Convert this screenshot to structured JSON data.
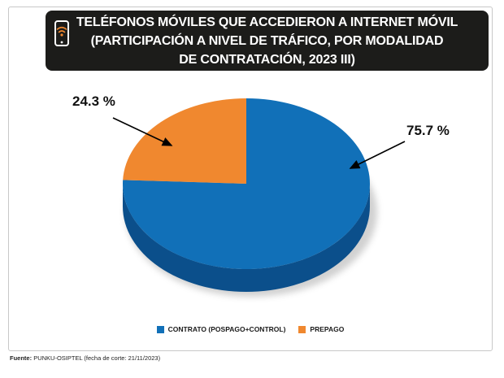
{
  "header": {
    "lines": [
      "TELÉFONOS MÓVILES QUE ACCEDIERON A INTERNET MÓVIL",
      "(PARTICIPACIÓN A NIVEL DE TRÁFICO, POR MODALIDAD",
      "DE CONTRATACIÓN, 2023 III)"
    ]
  },
  "chart_data": {
    "type": "pie",
    "style": "3d",
    "title": "TELÉFONOS MÓVILES QUE ACCEDIERON A INTERNET MÓVIL (PARTICIPACIÓN A NIVEL DE TRÁFICO, POR MODALIDAD DE CONTRATACIÓN, 2023 III)",
    "unit": "%",
    "legend_position": "bottom",
    "slices": [
      {
        "label": "CONTRATO (POSPAGO+CONTROL)",
        "value": 75.7,
        "display": "75.7 %",
        "color": "#1170b8",
        "side_color": "#0b4f8b"
      },
      {
        "label": "PREPAGO",
        "value": 24.3,
        "display": "24.3 %",
        "color": "#f0882f",
        "side_color": "#c96d1c"
      }
    ]
  },
  "footer": {
    "source_label": "Fuente:",
    "source_text": "PUNKU-OSIPTEL (fecha de corte: 21/11/2023)"
  }
}
